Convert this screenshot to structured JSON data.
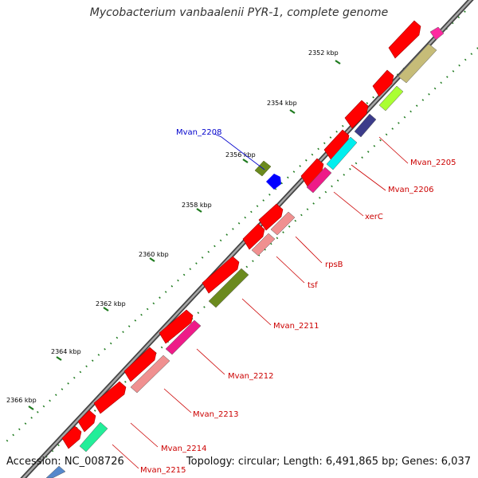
{
  "title": "Mycobacterium vanbaalenii PYR-1, complete genome",
  "footer": {
    "accession": "Accession: NC_008726",
    "summary": "Topology: circular; Length: 6,491,865 bp; Genes: 6,037"
  },
  "colors": {
    "backbone": "#7a7a7a",
    "tick": "#1e7a1e",
    "label_red": "#cc0000",
    "label_blue": "#0000cc",
    "cds_red": "#ff0000"
  },
  "scale": {
    "unit": "kbp",
    "labels": [
      "2352 kbp",
      "2354 kbp",
      "2356 kbp",
      "2358 kbp",
      "2360 kbp",
      "2362 kbp",
      "2364 kbp",
      "2366 kbp"
    ]
  },
  "gene_labels": [
    {
      "text": "Mvan_2205",
      "color": "#cc0000"
    },
    {
      "text": "Mvan_2206",
      "color": "#cc0000"
    },
    {
      "text": "xerC",
      "color": "#cc0000"
    },
    {
      "text": "rpsB",
      "color": "#cc0000"
    },
    {
      "text": "tsf",
      "color": "#cc0000"
    },
    {
      "text": "Mvan_2211",
      "color": "#cc0000"
    },
    {
      "text": "Mvan_2212",
      "color": "#cc0000"
    },
    {
      "text": "Mvan_2213",
      "color": "#cc0000"
    },
    {
      "text": "Mvan_2214",
      "color": "#cc0000"
    },
    {
      "text": "Mvan_2215",
      "color": "#cc0000"
    },
    {
      "text": "Mvan_2208",
      "color": "#0000cc"
    }
  ]
}
